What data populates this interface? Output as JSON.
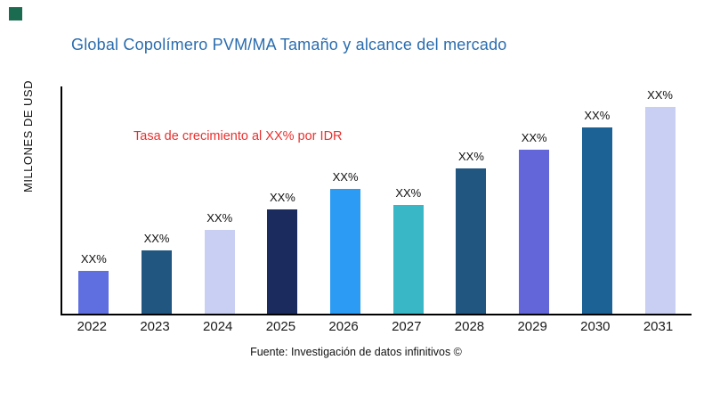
{
  "page": {
    "title": "Global Copolímero PVM/MA Tamaño y alcance del mercado",
    "title_color": "#2a6cae",
    "annotation": "Tasa de crecimiento al XX% por IDR",
    "annotation_color": "#e8302e",
    "y_axis_label": "MILLONES DE USD",
    "footer": "Fuente: Investigación de datos infinitivos ©",
    "brand_square_color": "#1a6b4f"
  },
  "chart_data": {
    "type": "bar",
    "title": "Global Copolímero PVM/MA Tamaño y alcance del mercado",
    "xlabel": "",
    "ylabel": "MILLONES DE USD",
    "categories": [
      "2022",
      "2023",
      "2024",
      "2025",
      "2026",
      "2027",
      "2028",
      "2029",
      "2030",
      "2031"
    ],
    "values": [
      19,
      28,
      37,
      46,
      55,
      48,
      64,
      72,
      82,
      91
    ],
    "value_note": "axis unlabeled; values estimated as percent of plot height",
    "ylim": [
      0,
      100
    ],
    "bar_labels": [
      "XX%",
      "XX%",
      "XX%",
      "XX%",
      "XX%",
      "XX%",
      "XX%",
      "XX%",
      "XX%",
      "XX%"
    ],
    "bar_colors": [
      "#5f6fe0",
      "#20567f",
      "#c9cef3",
      "#1c2b5e",
      "#2b9bf4",
      "#3ab7c6",
      "#20567f",
      "#6266d8",
      "#1d6294",
      "#c9cef3"
    ],
    "annotation": "Tasa de crecimiento al XX% por IDR",
    "grid": false,
    "legend": "none"
  }
}
